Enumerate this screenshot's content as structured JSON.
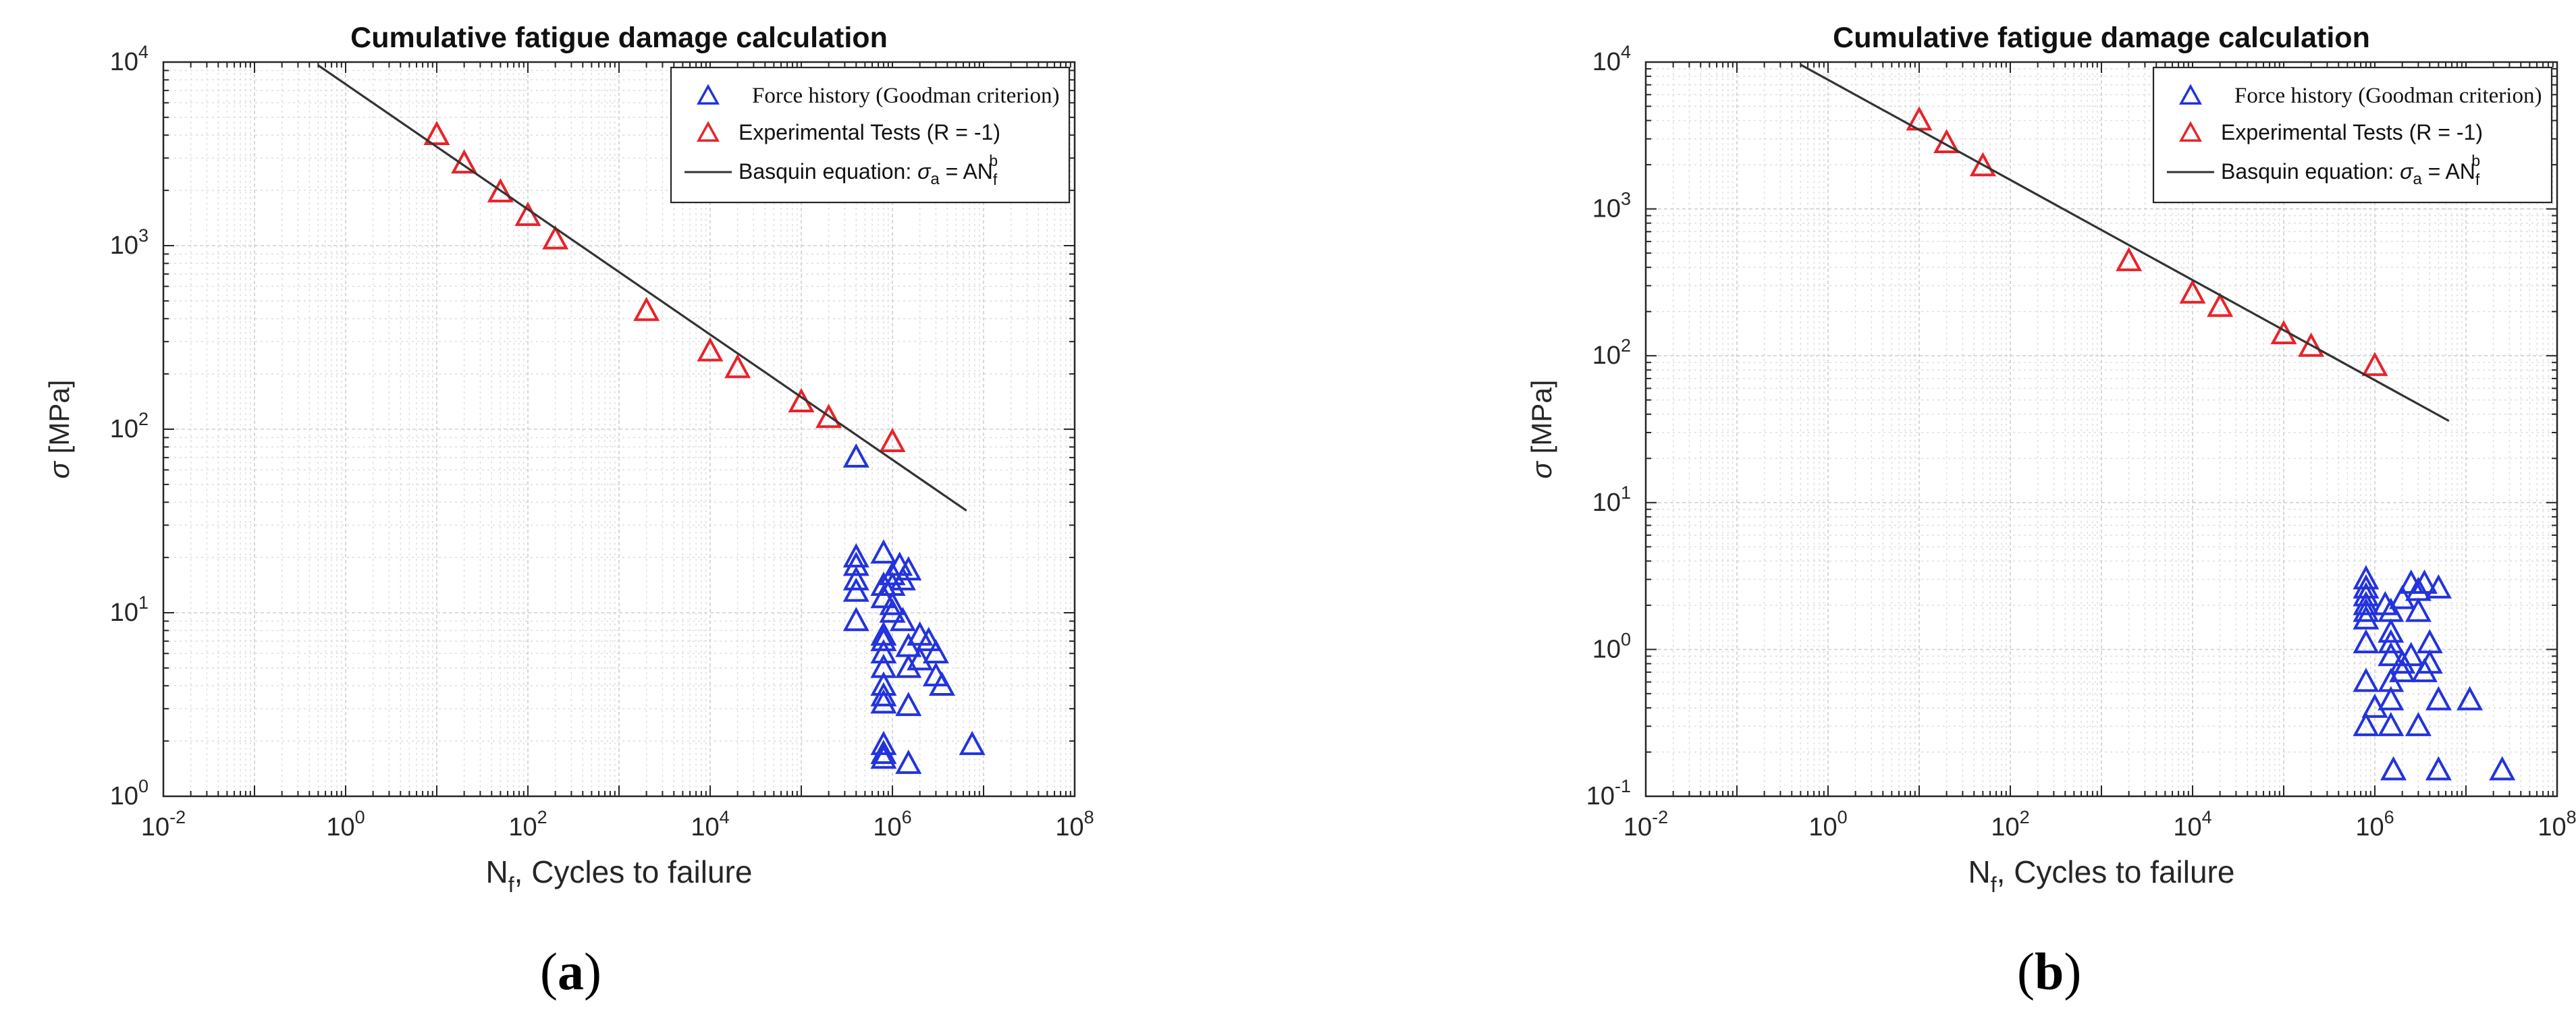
{
  "chart_data": [
    {
      "type": "scatter",
      "panel_label": "a",
      "title": "Cumulative fatigue damage calculation",
      "xlabel_main": "N",
      "xlabel_sub": "f",
      "xlabel_rest": ", Cycles to failure",
      "ylabel_symbol": "σ",
      "ylabel_rest": " [MPa]",
      "xscale": "log",
      "yscale": "log",
      "xlim": [
        0.01,
        100000000
      ],
      "ylim": [
        1,
        10000
      ],
      "x_tick_exponents": [
        -2,
        0,
        2,
        4,
        6,
        8
      ],
      "y_tick_exponents": [
        0,
        1,
        2,
        3,
        4
      ],
      "grid": true,
      "legend_position": "top-right",
      "legend": {
        "force": "Force  history (Goodman criterion)",
        "exp": "Experimental Tests (R = -1)",
        "basquin_prefix": "Basquin equation: ",
        "basquin_sigma": "σ",
        "basquin_a": "a",
        "basquin_eq": " = AN",
        "basquin_sub": "f",
        "basquin_sup": "b"
      },
      "series": [
        {
          "name": "Experimental Tests (R = -1)",
          "color": "#e8232a",
          "marker": "triangle",
          "points": [
            [
              10,
              4000
            ],
            [
              20,
              2800
            ],
            [
              50,
              1950
            ],
            [
              100,
              1450
            ],
            [
              200,
              1080
            ],
            [
              2000,
              440
            ],
            [
              10000,
              265
            ],
            [
              20000,
              215
            ],
            [
              100000,
              140
            ],
            [
              200000,
              115
            ],
            [
              1000000,
              85
            ]
          ]
        },
        {
          "name": "Force  history (Goodman criterion)",
          "color": "#2233dd",
          "marker": "triangle",
          "points": [
            [
              400000,
              70
            ],
            [
              400000,
              20
            ],
            [
              400000,
              18
            ],
            [
              400000,
              15
            ],
            [
              400000,
              13
            ],
            [
              400000,
              9
            ],
            [
              800000,
              21
            ],
            [
              800000,
              14
            ],
            [
              800000,
              12
            ],
            [
              800000,
              7.5
            ],
            [
              800000,
              7
            ],
            [
              800000,
              6
            ],
            [
              800000,
              5
            ],
            [
              800000,
              4
            ],
            [
              800000,
              3.5
            ],
            [
              800000,
              3.2
            ],
            [
              800000,
              1.9
            ],
            [
              800000,
              1.7
            ],
            [
              800000,
              1.6
            ],
            [
              1000000,
              16
            ],
            [
              1000000,
              14
            ],
            [
              1000000,
              11
            ],
            [
              1000000,
              10
            ],
            [
              1200000,
              18
            ],
            [
              1300000,
              15
            ],
            [
              1300000,
              9
            ],
            [
              1500000,
              17
            ],
            [
              1500000,
              6.5
            ],
            [
              1500000,
              5
            ],
            [
              1500000,
              3.1
            ],
            [
              1500000,
              1.5
            ],
            [
              2000000,
              7.5
            ],
            [
              2000000,
              5.5
            ],
            [
              2500000,
              7
            ],
            [
              3000000,
              6
            ],
            [
              3000000,
              4.5
            ],
            [
              3500000,
              4
            ],
            [
              7500000,
              1.9
            ]
          ]
        },
        {
          "name": "Basquin equation",
          "type": "line",
          "color": "#333333",
          "points": [
            [
              0.5,
              9600
            ],
            [
              6500000,
              36
            ]
          ]
        }
      ]
    },
    {
      "type": "scatter",
      "panel_label": "b",
      "title": "Cumulative fatigue damage calculation",
      "xlabel_main": "N",
      "xlabel_sub": "f",
      "xlabel_rest": ", Cycles to failure",
      "ylabel_symbol": "σ",
      "ylabel_rest": " [MPa]",
      "xscale": "log",
      "yscale": "log",
      "xlim": [
        0.01,
        100000000
      ],
      "ylim": [
        0.1,
        10000
      ],
      "x_tick_exponents": [
        -2,
        0,
        2,
        4,
        6,
        8
      ],
      "y_tick_exponents": [
        -1,
        0,
        1,
        2,
        3,
        4
      ],
      "grid": true,
      "legend_position": "top-right",
      "legend": {
        "force": "Force  history (Goodman criterion)",
        "exp": "Experimental Tests (R = -1)",
        "basquin_prefix": "Basquin equation: ",
        "basquin_sigma": "σ",
        "basquin_a": "a",
        "basquin_eq": " = AN",
        "basquin_sub": "f",
        "basquin_sup": "b"
      },
      "series": [
        {
          "name": "Experimental Tests (R = -1)",
          "color": "#e8232a",
          "marker": "triangle",
          "points": [
            [
              10,
              4000
            ],
            [
              20,
              2800
            ],
            [
              50,
              1950
            ],
            [
              2000,
              440
            ],
            [
              10000,
              265
            ],
            [
              20000,
              215
            ],
            [
              100000,
              140
            ],
            [
              200000,
              115
            ],
            [
              1000000,
              85
            ]
          ]
        },
        {
          "name": "Force  history (Goodman criterion)",
          "color": "#2233dd",
          "marker": "triangle",
          "points": [
            [
              800000,
              3
            ],
            [
              800000,
              2.6
            ],
            [
              800000,
              2.3
            ],
            [
              800000,
              2
            ],
            [
              800000,
              1.8
            ],
            [
              800000,
              1.6
            ],
            [
              800000,
              1.1
            ],
            [
              800000,
              0.6
            ],
            [
              800000,
              0.3
            ],
            [
              1000000,
              0.4
            ],
            [
              1300000,
              2
            ],
            [
              1500000,
              1.8
            ],
            [
              1500000,
              1.3
            ],
            [
              1500000,
              1.1
            ],
            [
              1500000,
              0.9
            ],
            [
              1500000,
              0.6
            ],
            [
              1500000,
              0.45
            ],
            [
              1500000,
              0.3
            ],
            [
              1600000,
              0.15
            ],
            [
              2000000,
              2.2
            ],
            [
              2000000,
              0.8
            ],
            [
              2000000,
              0.7
            ],
            [
              2500000,
              2.8
            ],
            [
              2500000,
              0.9
            ],
            [
              3000000,
              2.5
            ],
            [
              3000000,
              1.8
            ],
            [
              3000000,
              0.3
            ],
            [
              3500000,
              2.8
            ],
            [
              3500000,
              0.7
            ],
            [
              4000000,
              1.1
            ],
            [
              4000000,
              0.8
            ],
            [
              5000000,
              2.6
            ],
            [
              5000000,
              0.45
            ],
            [
              5000000,
              0.15
            ],
            [
              11000000,
              0.45
            ],
            [
              25000000,
              0.15
            ]
          ]
        },
        {
          "name": "Basquin equation",
          "type": "line",
          "color": "#333333",
          "points": [
            [
              0.5,
              9600
            ],
            [
              6500000,
              36
            ]
          ]
        }
      ]
    }
  ]
}
